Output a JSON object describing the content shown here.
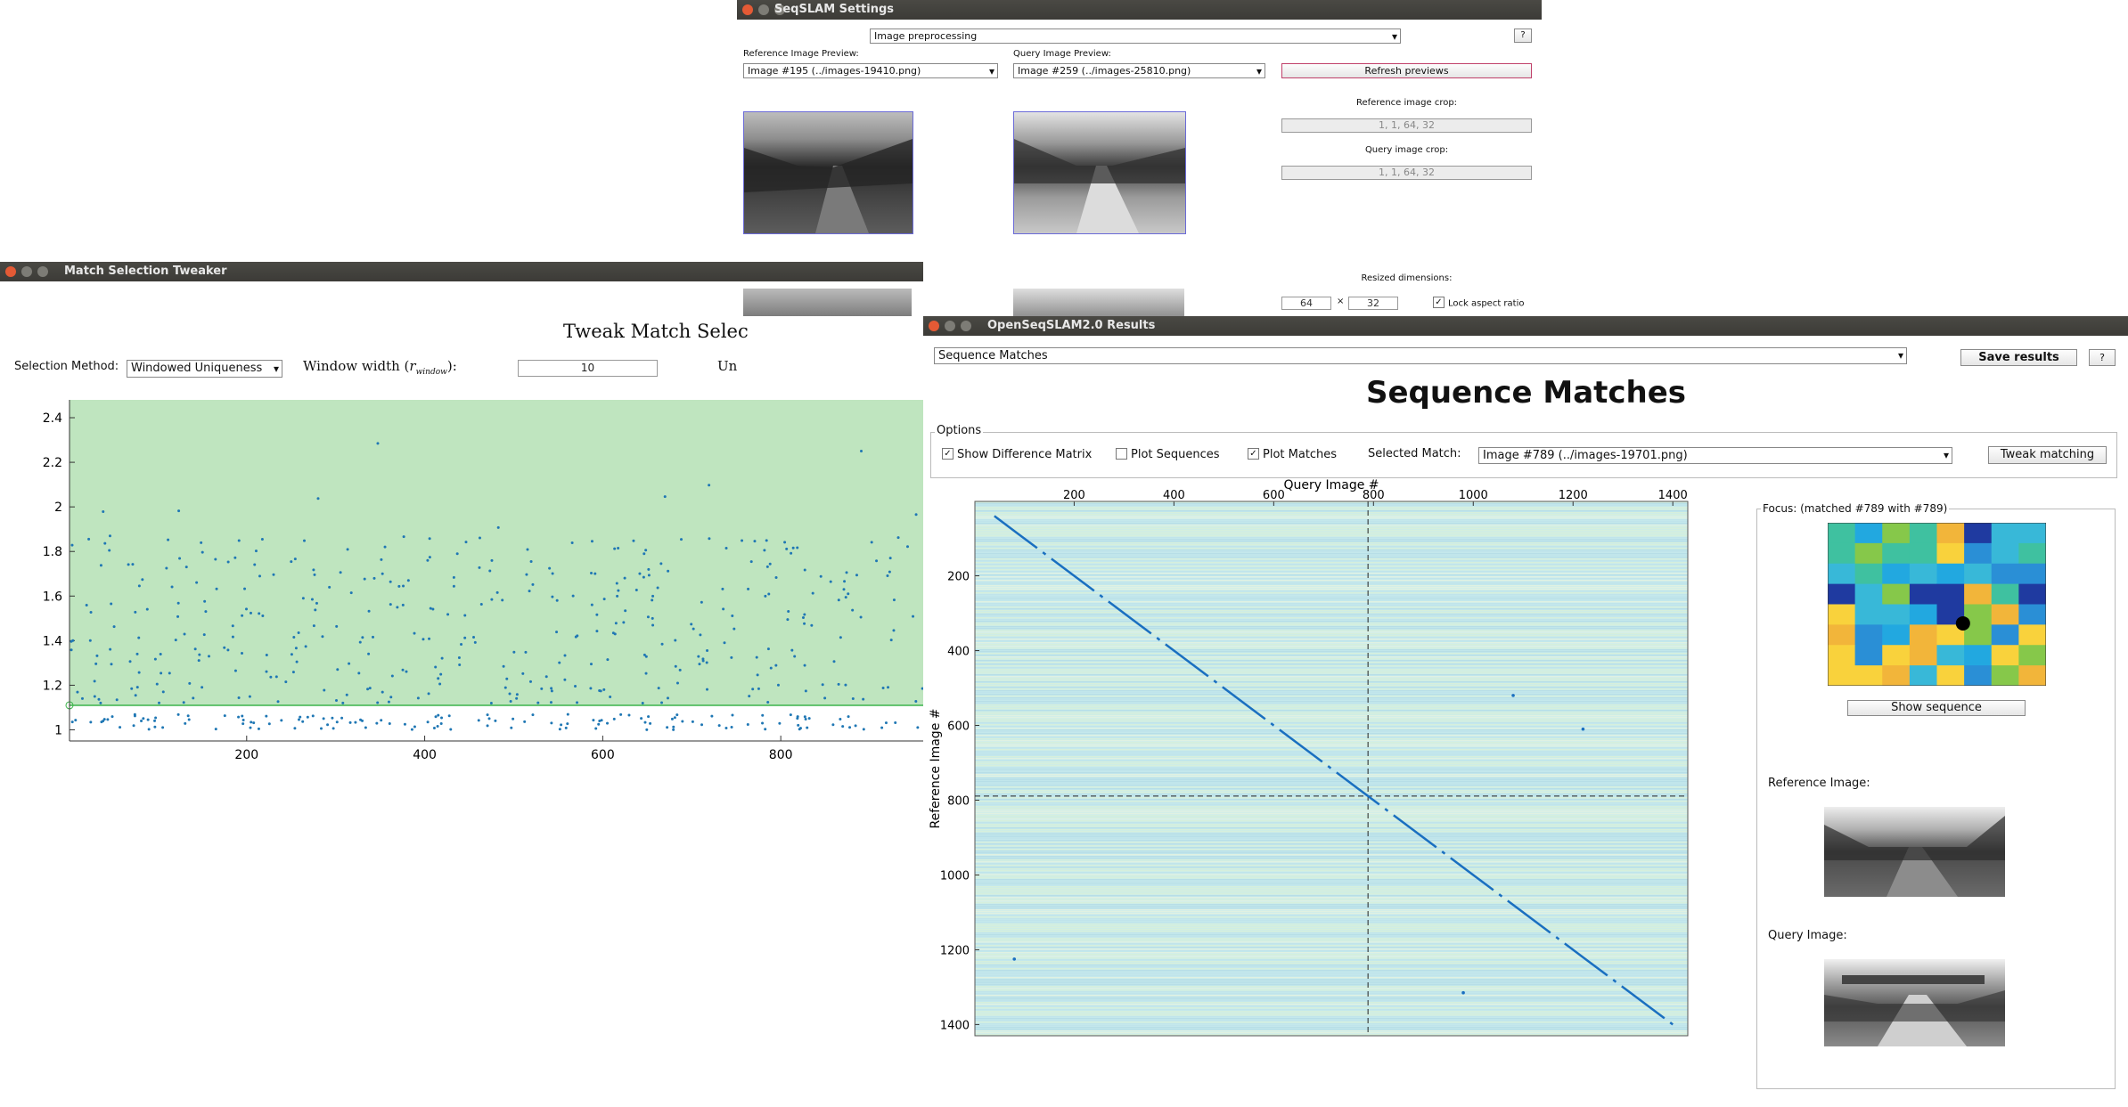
{
  "settings": {
    "title": "SeqSLAM Settings",
    "section_select": "Image preprocessing",
    "help": "?",
    "ref_preview_label": "Reference Image Preview:",
    "ref_preview_value": "Image #195 (../images-19410.png)",
    "query_preview_label": "Query Image Preview:",
    "query_preview_value": "Image #259 (../images-25810.png)",
    "refresh_button": "Refresh previews",
    "ref_crop_label": "Reference image crop:",
    "ref_crop_value": "1, 1, 64, 32",
    "query_crop_label": "Query image crop:",
    "query_crop_value": "1, 1, 64, 32",
    "resized_label": "Resized dimensions:",
    "width_value": "64",
    "times": "×",
    "height_value": "32",
    "lock_label": "Lock aspect ratio"
  },
  "tweaker": {
    "title": "Match Selection Tweaker",
    "heading": "Tweak Match Selec",
    "method_label": "Selection Method:",
    "method_value": "Windowed Uniqueness",
    "window_label_main": "Window width (",
    "window_label_var": "r",
    "window_label_sub": "window",
    "window_label_end": "):",
    "window_value": "10",
    "cut_label": "Un",
    "chart_data": {
      "type": "scatter",
      "xlim": [
        1,
        960
      ],
      "ylim": [
        0.95,
        2.48
      ],
      "x_ticks": [
        200,
        400,
        600,
        800
      ],
      "y_ticks": [
        1,
        1.2,
        1.4,
        1.6,
        1.8,
        2,
        2.2,
        2.4
      ],
      "threshold": 1.11,
      "accept_region_top": 1.74,
      "accent_fill": "#bfe5bf",
      "threshold_color": "#3cb44b",
      "point_color": "#1f77b4"
    }
  },
  "results": {
    "title": "OpenSeqSLAM2.0 Results",
    "view_select": "Sequence Matches",
    "save_button": "Save results",
    "help": "?",
    "heading": "Sequence Matches",
    "options_label": "Options",
    "opt_diff": "Show Difference Matrix",
    "opt_seq": "Plot Sequences",
    "opt_matches": "Plot Matches",
    "selected_label": "Selected Match:",
    "selected_value": "Image #789 (../images-19701.png)",
    "tweak_button": "Tweak matching",
    "focus_label": "Focus: (matched #789 with #789)",
    "show_sequence": "Show sequence",
    "ref_image_label": "Reference Image:",
    "query_image_label": "Query Image:",
    "chart_data": {
      "type": "heatmap",
      "xlabel": "Query Image #",
      "ylabel": "Reference Image #",
      "xlim": [
        1,
        1430
      ],
      "ylim": [
        1,
        1430
      ],
      "x_ticks": [
        200,
        400,
        600,
        800,
        1000,
        1200,
        1400
      ],
      "y_ticks": [
        200,
        400,
        600,
        800,
        1000,
        1200,
        1400
      ],
      "selected": 789,
      "match_line": [
        [
          40,
          40
        ],
        [
          1400,
          1400
        ]
      ],
      "outliers": [
        [
          1080,
          520
        ],
        [
          1220,
          610
        ],
        [
          80,
          1225
        ],
        [
          980,
          1315
        ]
      ]
    }
  }
}
